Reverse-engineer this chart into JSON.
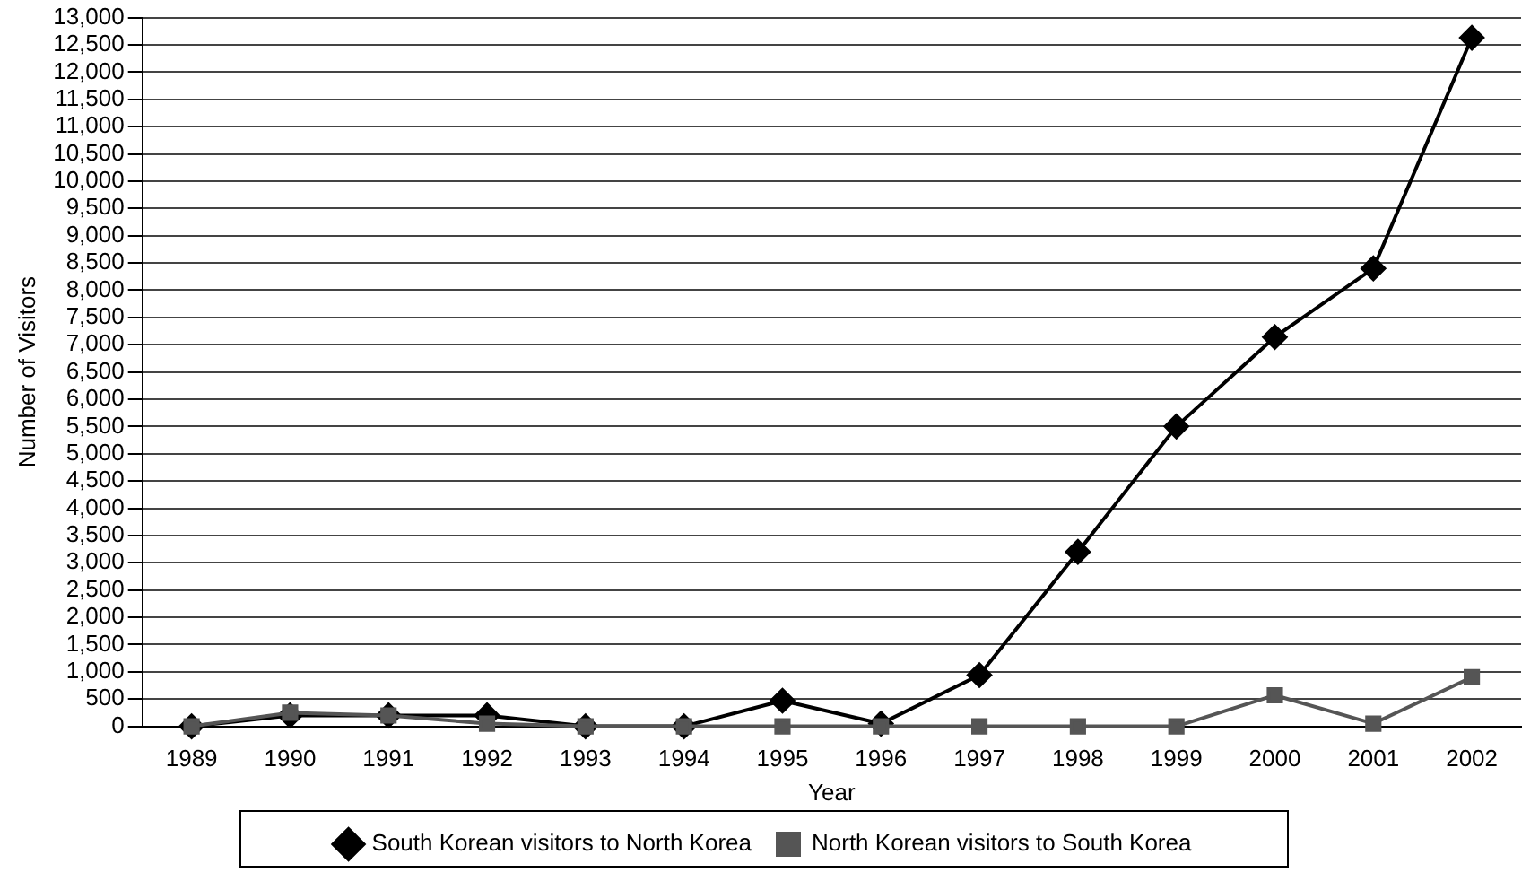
{
  "chart_data": {
    "type": "line",
    "xlabel": "Year",
    "ylabel": "Number of Visitors",
    "categories": [
      "1989",
      "1990",
      "1991",
      "1992",
      "1993",
      "1994",
      "1995",
      "1996",
      "1997",
      "1998",
      "1999",
      "2000",
      "2001",
      "2002"
    ],
    "series": [
      {
        "name": "South Korean visitors to North Korea",
        "color": "#000000",
        "marker": "diamond",
        "values": [
          0,
          200,
          200,
          200,
          0,
          0,
          470,
          50,
          940,
          3200,
          5500,
          7140,
          8400,
          12630
        ]
      },
      {
        "name": "North Korean visitors to South Korea",
        "color": "#555555",
        "marker": "square",
        "values": [
          0,
          250,
          200,
          50,
          0,
          0,
          0,
          0,
          0,
          0,
          0,
          570,
          50,
          900
        ]
      }
    ],
    "ylim": [
      0,
      13000
    ],
    "yticks": [
      0,
      500,
      {
        "value": 1000,
        "label": "1,000"
      },
      {
        "value": 1500,
        "label": "1,500"
      },
      {
        "value": 2000,
        "label": "2,000"
      },
      {
        "value": 2500,
        "label": "2,500"
      },
      {
        "value": 3000,
        "label": "3,000"
      },
      {
        "value": 3500,
        "label": "3,500"
      },
      {
        "value": 4000,
        "label": "4,000"
      },
      {
        "value": 4500,
        "label": "4,500"
      },
      {
        "value": 5000,
        "label": "5,000"
      },
      {
        "value": 5500,
        "label": "5,500"
      },
      {
        "value": 6000,
        "label": "6,000"
      },
      {
        "value": 6500,
        "label": "6,500"
      },
      {
        "value": 7000,
        "label": "7,000"
      },
      {
        "value": 7500,
        "label": "7,500"
      },
      {
        "value": 8000,
        "label": "8,000"
      },
      {
        "value": 8500,
        "label": "8,500"
      },
      {
        "value": 9000,
        "label": "9,000"
      },
      {
        "value": 9500,
        "label": "9,500"
      },
      {
        "value": 10000,
        "label": "10,000"
      },
      {
        "value": 10500,
        "label": "10,500"
      },
      {
        "value": 11000,
        "label": "11,000"
      },
      {
        "value": 11500,
        "label": "11,500"
      },
      {
        "value": 12000,
        "label": "12,000"
      },
      {
        "value": 12500,
        "label": "12,500"
      },
      {
        "value": 13000,
        "label": "13,000"
      }
    ],
    "grid": "y",
    "legend": "bottom",
    "line_style": "solid"
  }
}
